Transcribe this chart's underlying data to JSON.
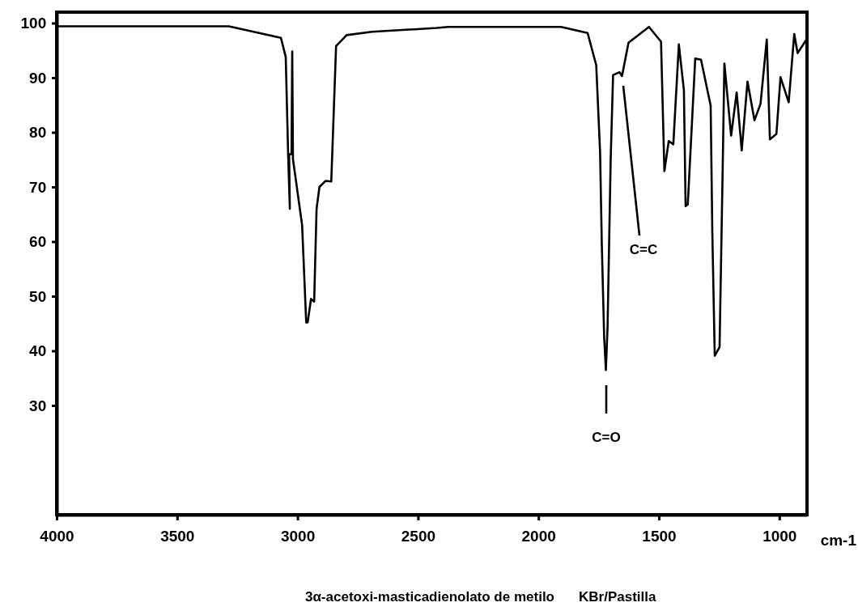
{
  "chart_data": {
    "type": "line",
    "title": "3α-acetoxi-masticadienolato de metilo",
    "subtitle": "KBr/Pastilla",
    "xlabel": "cm-1",
    "xlim": [
      4000,
      885
    ],
    "ylim": [
      10,
      102
    ],
    "xticks": [
      4000,
      3500,
      3000,
      2500,
      2000,
      1500,
      1000
    ],
    "yticks": [
      30,
      40,
      50,
      60,
      70,
      80,
      90,
      100
    ],
    "grid": false,
    "marker": "none",
    "line_style": "solid",
    "series": [
      {
        "color": "#000000",
        "x": [
          4000,
          3285,
          3069,
          3049,
          3039,
          3032,
          3035,
          3025,
          3022,
          3019,
          2981,
          2964,
          2958,
          2944,
          2931,
          2921,
          2909,
          2884,
          2860,
          2840,
          2796,
          2691,
          2422,
          2374,
          1906,
          1796,
          1760,
          1744,
          1737,
          1727,
          1720,
          1713,
          1700,
          1690,
          1663,
          1653,
          1626,
          1541,
          1491,
          1477,
          1459,
          1440,
          1417,
          1396,
          1389,
          1380,
          1349,
          1325,
          1285,
          1278,
          1268,
          1248,
          1234,
          1228,
          1200,
          1177,
          1156,
          1132,
          1103,
          1078,
          1052,
          1039,
          1012,
          995,
          961,
          938,
          924,
          887
        ],
        "values": [
          99.4,
          99.4,
          97.3,
          93.8,
          76,
          66,
          76,
          76,
          94.8,
          75.1,
          63,
          45.2,
          45.2,
          49.5,
          49,
          66,
          70,
          71.1,
          71,
          95.8,
          97.8,
          98.4,
          99.1,
          99.3,
          99.3,
          98.2,
          92.3,
          76.4,
          59.7,
          42.4,
          36.5,
          44.3,
          75.1,
          90.5,
          91,
          90.3,
          96.4,
          99.3,
          96.6,
          72.9,
          78.4,
          77.8,
          96.1,
          87.7,
          66.5,
          66.8,
          93.5,
          93.3,
          84.9,
          61.6,
          39.1,
          40.7,
          76.1,
          92.6,
          79.4,
          87.3,
          76.7,
          89.3,
          82.2,
          85.2,
          97,
          78.7,
          79.7,
          90.1,
          85.5,
          98,
          94.5,
          97
        ]
      }
    ],
    "annotations": [
      "C=O",
      "C=C"
    ]
  }
}
